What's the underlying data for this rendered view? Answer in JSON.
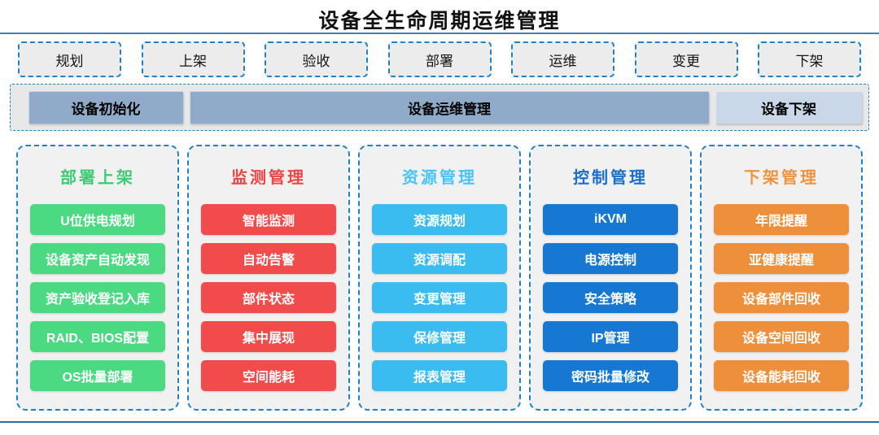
{
  "title": "设备全生命周期运维管理",
  "flow_steps": [
    "规划",
    "上架",
    "验收",
    "部署",
    "运维",
    "变更",
    "下架"
  ],
  "phases": [
    {
      "label": "设备初始化",
      "bg": "#8fabc9"
    },
    {
      "label": "设备运维管理",
      "bg": "#8fabc9"
    },
    {
      "label": "设备下架",
      "bg": "#c9d7e8"
    }
  ],
  "columns": [
    {
      "title": "部署上架",
      "title_color": "#3ecb74",
      "accent": "#4bd982",
      "items": [
        "U位供电规划",
        "设备资产自动发现",
        "资产验收登记入库",
        "RAID、BIOS配置",
        "OS批量部署"
      ]
    },
    {
      "title": "监测管理",
      "title_color": "#ec4545",
      "accent": "#f14b4b",
      "items": [
        "智能监测",
        "自动告警",
        "部件状态",
        "集中展现",
        "空间能耗"
      ]
    },
    {
      "title": "资源管理",
      "title_color": "#4ac4f5",
      "accent": "#3abcf1",
      "items": [
        "资源规划",
        "资源调配",
        "变更管理",
        "保修管理",
        "报表管理"
      ]
    },
    {
      "title": "控制管理",
      "title_color": "#1c6fc9",
      "accent": "#1678d3",
      "items": [
        "iKVM",
        "电源控制",
        "安全策略",
        "IP管理",
        "密码批量修改"
      ]
    },
    {
      "title": "下架管理",
      "title_color": "#f0933f",
      "accent": "#ee8f3b",
      "items": [
        "年限提醒",
        "亚健康提醒",
        "设备部件回收",
        "设备空间回收",
        "设备能耗回收"
      ]
    }
  ],
  "colors": {
    "dashed_border": "#1e82c4",
    "top_divider": "#4a7aae",
    "bottom_divider": "#2e6da4",
    "flow_box_bg": "#ececec",
    "banner_bg": "#e8e8e8",
    "column_bg": "#f1f1f1"
  }
}
